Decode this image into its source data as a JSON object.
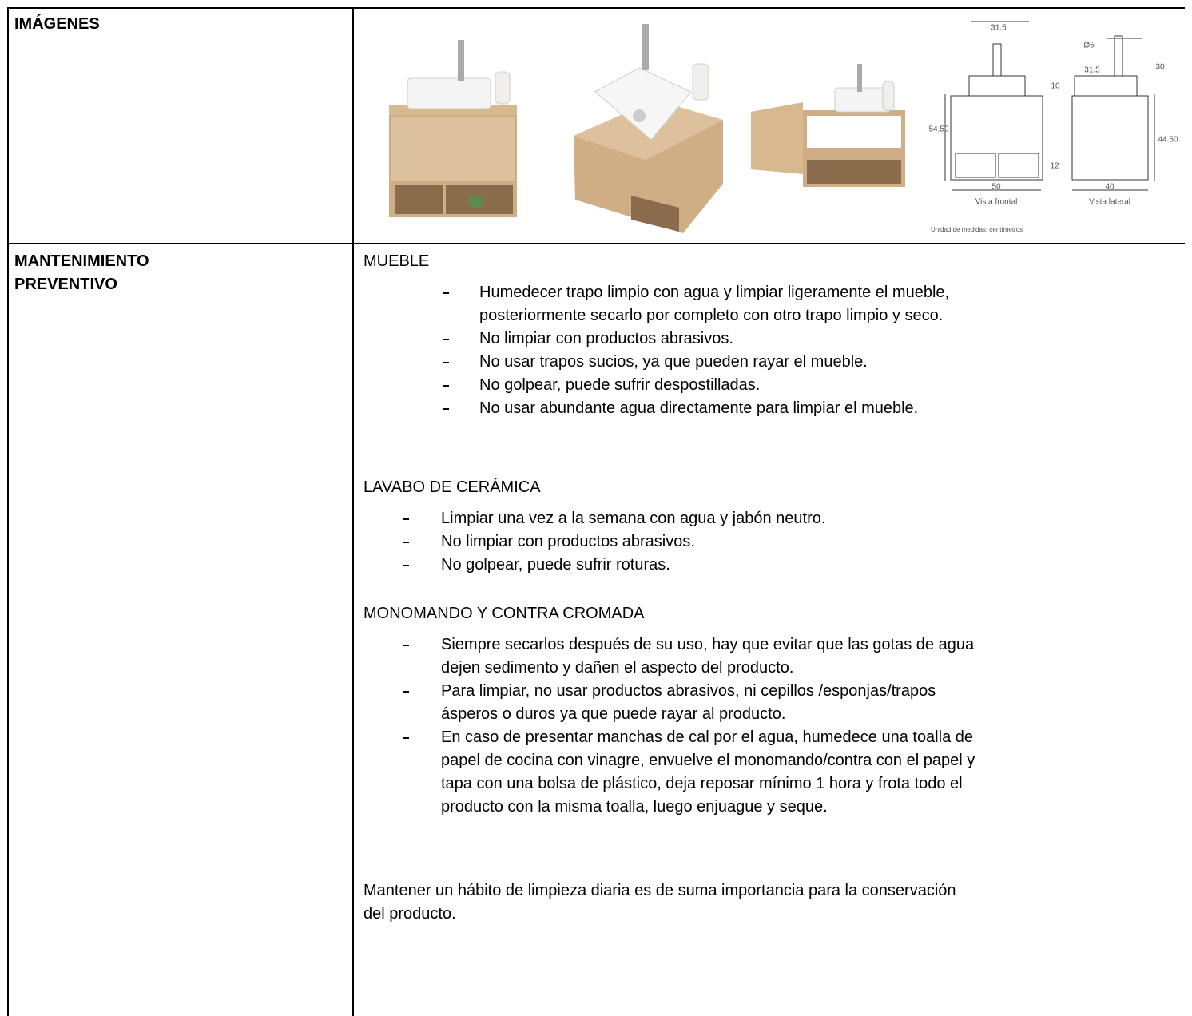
{
  "table": {
    "rows": [
      {
        "label": [
          "IMÁGENES"
        ],
        "drawing": {
          "labels": [
            "31.5",
            "Ø5",
            "31.5",
            "30",
            "10",
            "54.50",
            "44.50",
            "12",
            "50",
            "Vista frontal",
            "40",
            "Vista lateral",
            "Unidad de medidas: centímetros"
          ]
        }
      },
      {
        "label": [
          "MANTENIMIENTO",
          "PREVENTIVO"
        ],
        "sections": [
          {
            "heading": "MUEBLE",
            "items": [
              [
                "Humedecer trapo limpio con agua y limpiar ligeramente el mueble,",
                "posteriormente secarlo por completo con otro trapo limpio y seco."
              ],
              [
                "No limpiar con productos abrasivos."
              ],
              [
                "No usar trapos sucios, ya que pueden rayar el mueble."
              ],
              [
                "No golpear, puede sufrir despostilladas."
              ],
              [
                "No usar abundante agua directamente para limpiar el mueble."
              ]
            ]
          },
          {
            "heading": "LAVABO DE CERÁMICA",
            "items": [
              [
                "Limpiar una vez a la semana con agua y jabón neutro."
              ],
              [
                "No limpiar con productos abrasivos."
              ],
              [
                "No golpear, puede sufrir roturas."
              ]
            ]
          },
          {
            "heading": "MONOMANDO Y CONTRA CROMADA",
            "items": [
              [
                "Siempre secarlos después de su uso, hay que evitar que las gotas de agua",
                "dejen sedimento y dañen el aspecto del producto."
              ],
              [
                "Para limpiar, no usar productos abrasivos, ni cepillos /esponjas/trapos",
                "ásperos o duros ya que puede rayar al producto."
              ],
              [
                "En caso de presentar manchas de cal por el agua, humedece una toalla de",
                "papel de cocina con vinagre, envuelve el monomando/contra con el papel y",
                "tapa con una bolsa de plástico, deja reposar mínimo 1 hora y frota todo el",
                "producto con la misma toalla, luego enjuague y seque."
              ]
            ]
          }
        ],
        "closing": [
          "Mantener un hábito de limpieza diaria es de suma importancia para la conservación",
          "del producto."
        ]
      }
    ]
  }
}
